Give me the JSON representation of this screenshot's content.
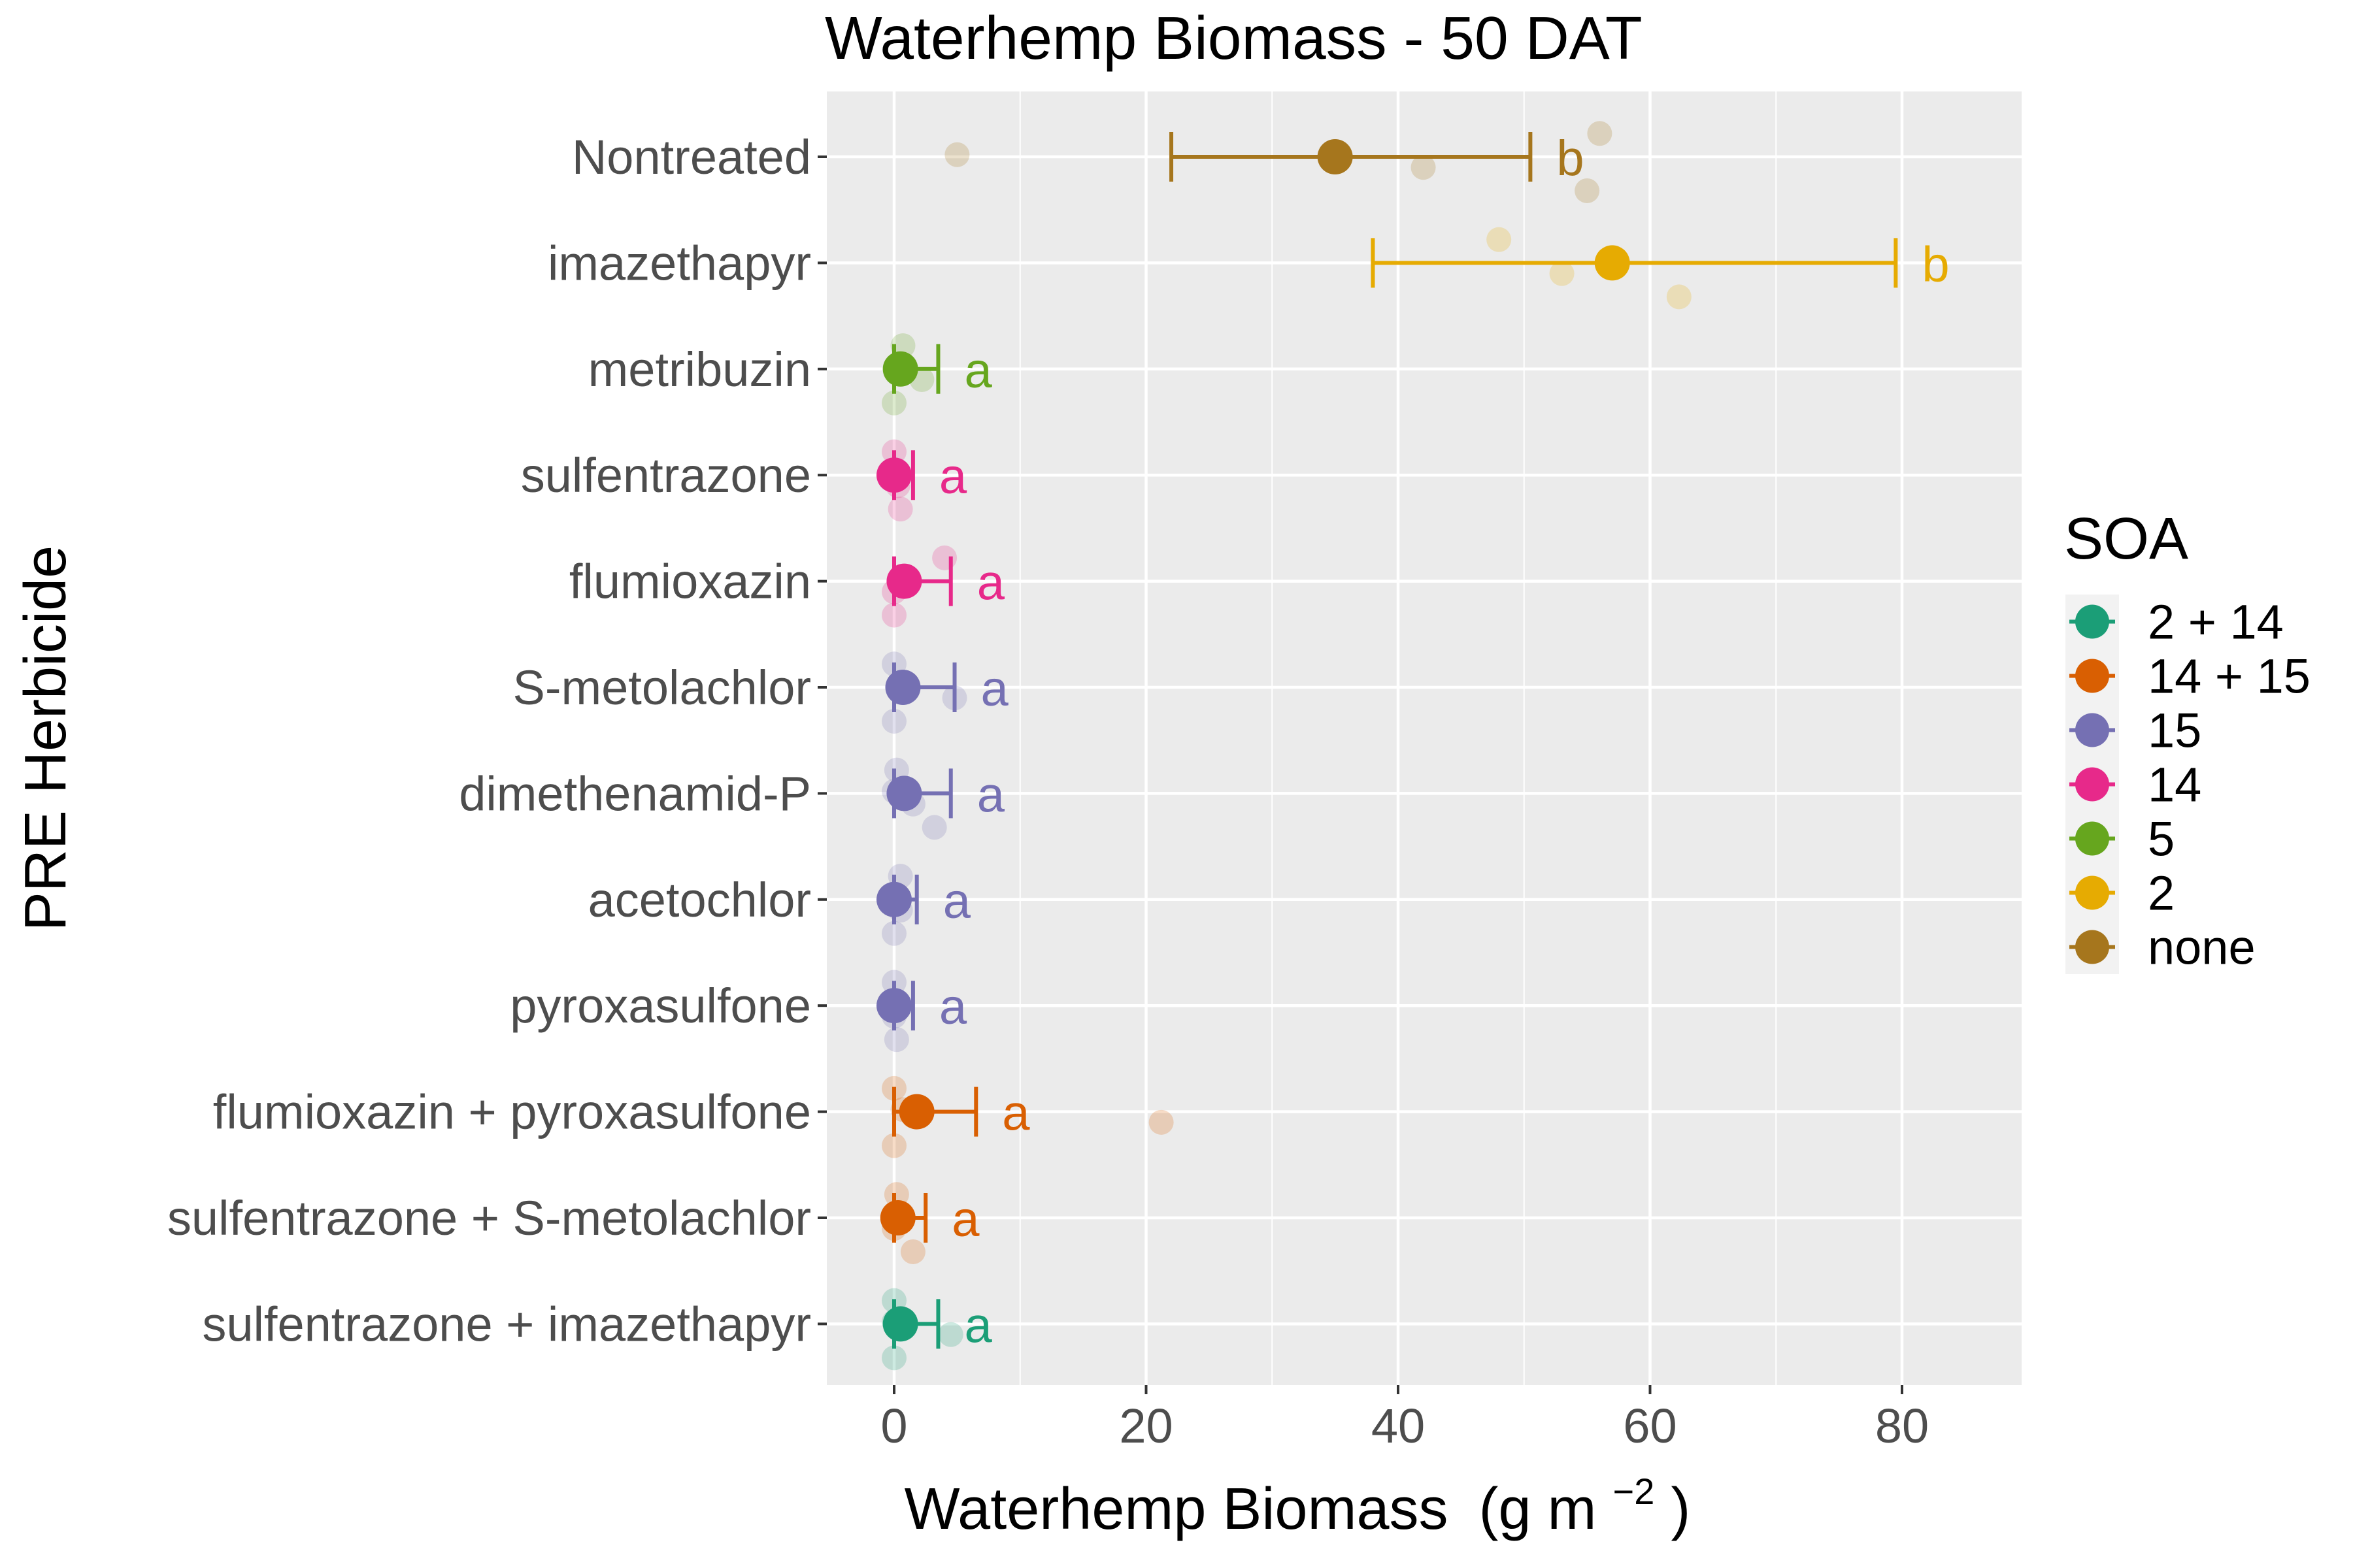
{
  "chart_data": {
    "type": "scatter",
    "title": "Waterhemp Biomass - 50 DAT",
    "xlabel": "Waterhemp Biomass",
    "xlabel_unit_base": "(g m",
    "xlabel_unit_sup": "−2",
    "xlabel_unit_close": ")",
    "ylabel": "PRE Herbicide",
    "xlim": [
      -5,
      89
    ],
    "x_ticks": [
      0,
      20,
      40,
      60,
      80
    ],
    "x_tick_labels": [
      "0",
      "20",
      "40",
      "60",
      "80"
    ],
    "grid": true,
    "legend": {
      "title": "SOA",
      "position": "right",
      "entries": [
        {
          "label": "2 + 14",
          "color": "#1b9e77"
        },
        {
          "label": "14 + 15",
          "color": "#d95f02"
        },
        {
          "label": "15",
          "color": "#7570b3"
        },
        {
          "label": "14",
          "color": "#e7298a"
        },
        {
          "label": "5",
          "color": "#66a61e"
        },
        {
          "label": "2",
          "color": "#e6ab02"
        },
        {
          "label": "none",
          "color": "#a6761d"
        }
      ]
    },
    "categories": [
      "Nontreated",
      "imazethapyr",
      "metribuzin",
      "sulfentrazone",
      "flumioxazin",
      "S-metolachlor",
      "dimethenamid-P",
      "acetochlor",
      "pyroxasulfone",
      "flumioxazin + pyroxasulfone",
      "sulfentrazone + S-metolachlor",
      "sulfentrazone + imazethapyr"
    ],
    "series": [
      {
        "category": "Nontreated",
        "soa": "none",
        "color": "#a6761d",
        "mean": 35,
        "lower": 22,
        "upper": 50.5,
        "letter": "b",
        "points": [
          56,
          42,
          55,
          5
        ]
      },
      {
        "category": "imazethapyr",
        "soa": "2",
        "color": "#e6ab02",
        "mean": 57,
        "lower": 38,
        "upper": 79.5,
        "letter": "b",
        "points": [
          48,
          53,
          62.3
        ]
      },
      {
        "category": "metribuzin",
        "soa": "5",
        "color": "#66a61e",
        "mean": 0.5,
        "lower": 0,
        "upper": 3.5,
        "letter": "a",
        "points": [
          0.7,
          2.2,
          0
        ]
      },
      {
        "category": "sulfentrazone",
        "soa": "14",
        "color": "#e7298a",
        "mean": 0,
        "lower": 0,
        "upper": 1.5,
        "letter": "a",
        "points": [
          0,
          0.3,
          0.5,
          0
        ]
      },
      {
        "category": "flumioxazin",
        "soa": "14",
        "color": "#e7298a",
        "mean": 0.8,
        "lower": 0,
        "upper": 4.5,
        "letter": "a",
        "points": [
          4,
          0,
          0
        ]
      },
      {
        "category": "S-metolachlor",
        "soa": "15",
        "color": "#7570b3",
        "mean": 0.7,
        "lower": 0,
        "upper": 4.8,
        "letter": "a",
        "points": [
          0,
          4.8,
          0
        ]
      },
      {
        "category": "dimethenamid-P",
        "soa": "15",
        "color": "#7570b3",
        "mean": 0.8,
        "lower": 0,
        "upper": 4.5,
        "letter": "a",
        "points": [
          0.2,
          1.5,
          3.2,
          0
        ]
      },
      {
        "category": "acetochlor",
        "soa": "15",
        "color": "#7570b3",
        "mean": 0,
        "lower": 0,
        "upper": 1.8,
        "letter": "a",
        "points": [
          0.5,
          0.5,
          0,
          0
        ]
      },
      {
        "category": "pyroxasulfone",
        "soa": "15",
        "color": "#7570b3",
        "mean": 0,
        "lower": 0,
        "upper": 1.5,
        "letter": "a",
        "points": [
          0,
          0,
          0.2,
          0
        ]
      },
      {
        "category": "flumioxazin + pyroxasulfone",
        "soa": "14 + 15",
        "color": "#d95f02",
        "mean": 1.8,
        "lower": 0,
        "upper": 6.5,
        "letter": "a",
        "points": [
          0,
          21.2,
          0,
          0.7
        ]
      },
      {
        "category": "sulfentrazone + S-metolachlor",
        "soa": "14 + 15",
        "color": "#d95f02",
        "mean": 0.3,
        "lower": 0,
        "upper": 2.5,
        "letter": "a",
        "points": [
          0.2,
          0,
          1.5,
          0
        ]
      },
      {
        "category": "sulfentrazone + imazethapyr",
        "soa": "2 + 14",
        "color": "#1b9e77",
        "mean": 0.5,
        "lower": 0,
        "upper": 3.5,
        "letter": "a",
        "points": [
          0,
          4.5,
          0,
          0
        ]
      }
    ]
  }
}
